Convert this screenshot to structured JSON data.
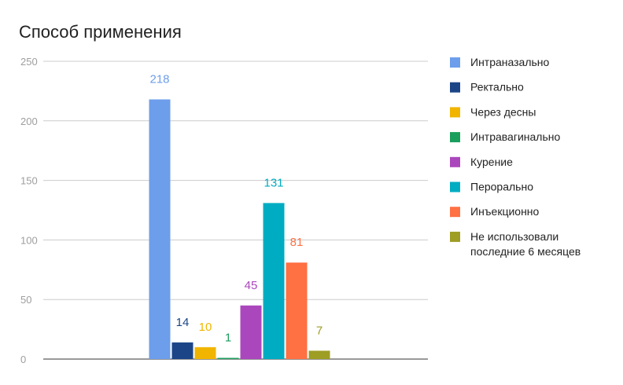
{
  "chart_data": {
    "type": "bar",
    "title": "Способ применения",
    "xlabel": "",
    "ylabel": "",
    "ylim": [
      0,
      250
    ],
    "yticks": [
      0,
      50,
      100,
      150,
      200,
      250
    ],
    "grid": true,
    "legend_position": "right",
    "series": [
      {
        "name": "Интраназально",
        "values": [
          218
        ],
        "color": "#6d9eeb"
      },
      {
        "name": "Ректально",
        "values": [
          14
        ],
        "color": "#1c4587"
      },
      {
        "name": "Через десны",
        "values": [
          10
        ],
        "color": "#f1b500"
      },
      {
        "name": "Интравагинально",
        "values": [
          1
        ],
        "color": "#1a9e5c"
      },
      {
        "name": "Курение",
        "values": [
          45
        ],
        "color": "#ab47bc"
      },
      {
        "name": "Перорально",
        "values": [
          131
        ],
        "color": "#00acc1"
      },
      {
        "name": "Инъекционно",
        "values": [
          81
        ],
        "color": "#ff7043"
      },
      {
        "name": "Не использовали последние 6 месяцев",
        "name_lines": [
          "Не использовали",
          "последние 6 месяцев"
        ],
        "values": [
          7
        ],
        "color": "#9e9d24"
      }
    ]
  }
}
